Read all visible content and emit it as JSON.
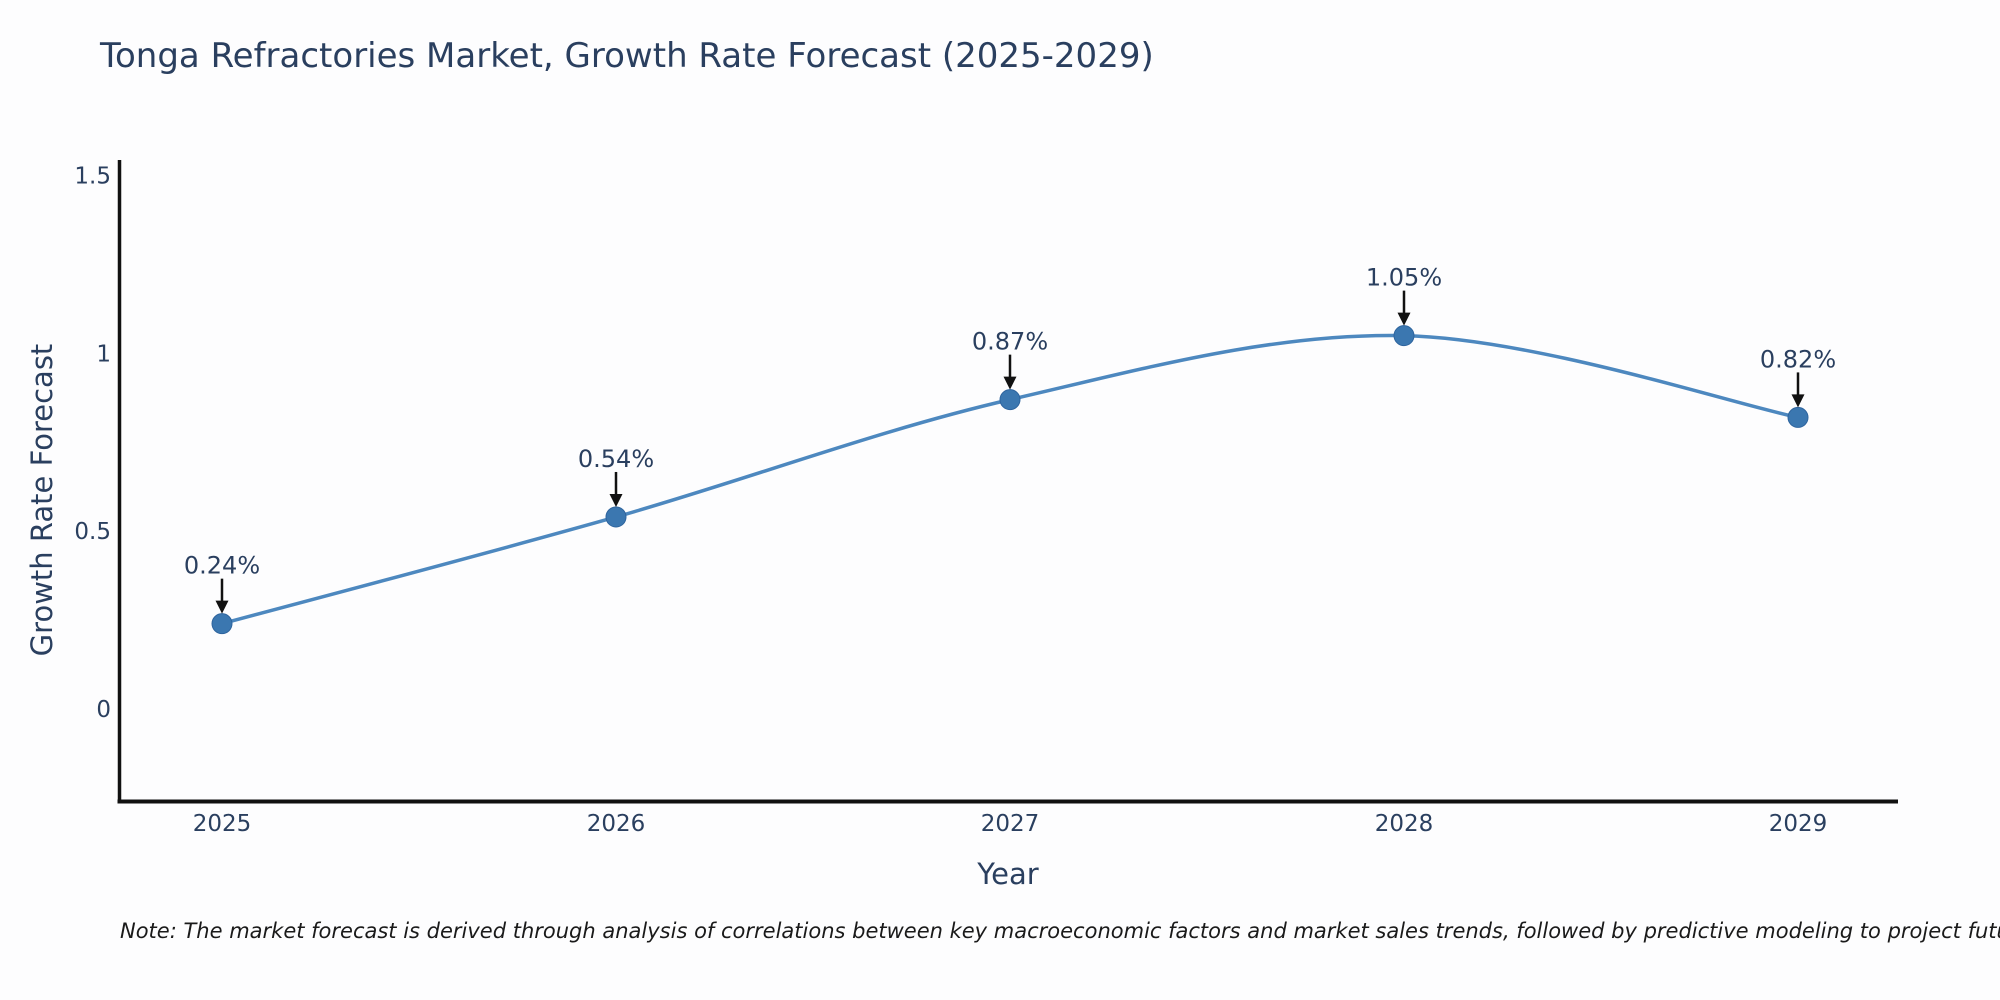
{
  "title": "Tonga Refractories Market, Growth Rate Forecast (2025-2029)",
  "chart_data": {
    "type": "line",
    "title": "Tonga Refractories Market, Growth Rate Forecast (2025-2029)",
    "x": [
      "2025",
      "2026",
      "2027",
      "2028",
      "2029"
    ],
    "series": [
      {
        "name": "Growth Rate Forecast",
        "values": [
          0.24,
          0.54,
          0.87,
          1.05,
          0.82
        ]
      }
    ],
    "point_labels": [
      "0.24%",
      "0.54%",
      "0.87%",
      "1.05%",
      "0.82%"
    ],
    "xlabel": "Year",
    "ylabel": "Growth Rate Forecast",
    "yticks": {
      "values": [
        0,
        0.5,
        1,
        1.5
      ],
      "labels": [
        "0",
        "0.5",
        "1",
        "1.5"
      ]
    },
    "ylim": [
      -0.26,
      1.54
    ],
    "grid": false,
    "legend": "none",
    "line_shape": "spline",
    "annotation_style": "value label above each point with black arrow pointing to point",
    "colors": {
      "line": "#4d88bf",
      "marker": "#3b77b0",
      "marker_edge": "#2e649e",
      "arrow": "#111111",
      "text": "#2a3f5f",
      "axis": "#111111"
    }
  },
  "note": "Note: The market forecast is derived through analysis of correlations between key macroeconomic factors and market sales trends, followed by predictive modeling to project future sales"
}
